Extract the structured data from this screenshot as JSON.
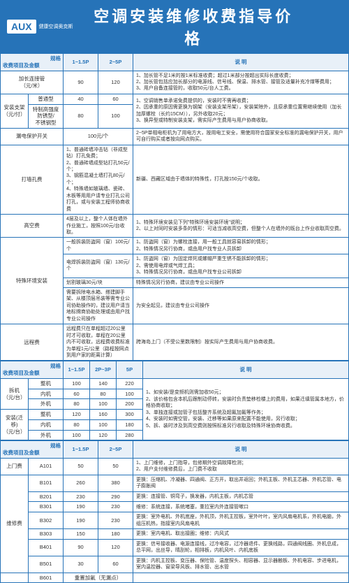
{
  "header": {
    "logo": "AUX",
    "logo_sub": "健康空调奥克斯",
    "title": "空调安装维修收费指导价格"
  },
  "colors": {
    "primary": "#2673b8",
    "bg_section": "#e8f0f8",
    "text": "#333333"
  },
  "section1": {
    "head_label": "收费项目及金额",
    "head_spec": "规格",
    "c1": "1~1.5P",
    "c2": "2~5P",
    "desc_label": "说  明",
    "r1": {
      "label": "加长连接管\n（元/米）",
      "v1": "90",
      "v2": "120",
      "desc": "1、加长管不足1米的按1米标准收费；超过1米部分按超出实际长度收费；\n2、加长管包括应加长部分的电源线、信号线、保温、排水管、接管及适量补充冷煤等费用；\n3、用户自备连接管的，收取50元/台人工费。"
    },
    "r2": {
      "cat": "安装支架\n（元/付）",
      "sub1": "普通型",
      "v1a": "40",
      "v2a": "60",
      "sub2": "特制高强度\n防锈型/\n不锈钢型",
      "v1b": "80",
      "v2b": "100",
      "desc": "1、空调销售单承诺免费提供的，安装时不需再收费；\n2、因承重的原因需更换为钢架（安装支架吊架），安装架除外，且原承重位置需继续使用（加长加厚螺栓（长约15CM）），另外收取20元；\n3、换异型或特制安装支架，需实际产生费用与用户协商收取。"
    },
    "r3": {
      "label": "漏电保护开关",
      "v": "100元/个",
      "desc": "2~5P单相电柜机为了用电方大，按用电工安全，需使用符合国家安全标准的漏电保护开关，用户可自行购买或者按向网点购买。"
    },
    "r4": {
      "label": "打墙孔费",
      "v": "1、普通砖墙冲击钻（非成型钻）打孔免费；\n2、普通砖墙成型钻打孔50元/个；\n3、钢筋混凝土墙打孔80元/个；\n4、特殊墙如玻璃墙、瓷砖、木板等用用户请专业打孔公司打孔，或与安装工程师协商收费",
      "desc": "新疆、西藏区域由于墙体的特殊性，打孔按150元/个收取。"
    },
    "r5": {
      "label": "高空费",
      "v": "4层及以上，整个人体在墙外作业施工，按照100元/台收取。",
      "desc": "1、特殊环境安装见下列\"特殊环境安装环境\"说明；\n2、以上对同时安装多条的情形：可适当减收高空费，但整个人在墙外的既台上作业收取高空费。"
    },
    "r6": {
      "cat": "特殊环境安装",
      "r6a": {
        "label": "一般拆装防盗网（窗）100元/个",
        "desc": "1、防盗网（窗）为螺栓连接，用一般工具就容易拆卸的情形；\n2、特殊情况另行协商，或由用户找专业人员拆卸"
      },
      "r6b": {
        "label": "电焊拆装防盗网（窗）130元/个",
        "desc": "1、防盗网（窗）为固定焊死或螺帽严重生锈不能拆卸的情形；\n2、需使用电焊或气焊工具；\n3、特殊情况另行协商，或由用户找专业公司拆卸"
      },
      "r6c": {
        "label": "划割玻璃30元/块",
        "desc": "特殊情况另行协商，建议由专业公司操作"
      },
      "r6d": {
        "label": "需要拆除电水箱、搭建脚手架、从楼顶层吊装等需专业公司协助操作的，建议用户请当地标牌商协助处理或由用户找专业公司操作",
        "desc": "为安全起见，建议由专业公司操作"
      }
    },
    "r7": {
      "label": "远程费",
      "v": "远程费只在单程超过20公里时才可收取，单程在20公里内不可收取，远程费收费标准为单程1元/公里（路程按网点到用户家的距离计算）",
      "desc": "跨海岛上门（不受公里数限制）按实际产生费用与用户协商收费。"
    }
  },
  "section2": {
    "c1": "1~1.5P",
    "c2": "2P~3P",
    "c3": "5P",
    "r1": {
      "cat": "拆机\n（元/台）",
      "sub": "整机",
      "v1": "100",
      "v2": "140",
      "v3": "220"
    },
    "r2": {
      "sub": "内机",
      "v1": "60",
      "v2": "80",
      "v3": "100"
    },
    "r3": {
      "sub": "外机",
      "v1": "80",
      "v2": "100",
      "v3": "200"
    },
    "r4": {
      "cat": "安装(迁移)\n（元/台）",
      "sub": "整机",
      "v1": "120",
      "v2": "160",
      "v3": "300"
    },
    "r5": {
      "sub": "内机",
      "v1": "80",
      "v2": "100",
      "v3": "180"
    },
    "r6": {
      "sub": "外机",
      "v1": "100",
      "v2": "120",
      "v3": "280"
    },
    "desc": "1、如安装/是变频机则需加收50元；\n2、该价格包含本机后跟制动停转，安装时负责垫移检楼上的费用，如果迁填管属本地方，价格协商收取；\n3、单独连接或加管子包括整齐系统及超氟加氟等作务；\n4、安装时如需空管，安装、迁移等如果原来配置不能使用，另行收取；\n5、拆、装时涉及到高空费则按照标准另行收取及特殊环境协商收费。"
  },
  "section3": {
    "c1": "1~1.5P",
    "c2": "2~5P",
    "r1": {
      "label": "上门费",
      "sub": "A101",
      "v1": "50",
      "v2": "50",
      "desc": "1、上门维修，上门指导，包修期外空调故障检测；\n2、用户支付维修费后，上门费不收取"
    },
    "r2": {
      "cat": "维修费",
      "items": [
        {
          "code": "B101",
          "v1": "260",
          "v2": "380",
          "desc": "更换：压缩机、冷凝器、四通阀、正方开，取出并返回；外机主板、外机主芯器、外机芯管、电子膨胀阀"
        },
        {
          "code": "B201",
          "v1": "230",
          "v2": "290",
          "desc": "更换：连接管、铜弯子，换发器，内机主板，内机芯管"
        },
        {
          "code": "B301",
          "v1": "190",
          "v2": "230",
          "desc": "维修：系统连接，系统堵塞，重拉室内外连接管嗽口"
        },
        {
          "code": "B302",
          "v1": "190",
          "v2": "230",
          "desc": "更换：室外电机、外机底座，外机顶，外机主控板，室外叶叶，室内风扇电机系，外机电脑，外组压机热，指接室内风扇电机"
        },
        {
          "code": "B303",
          "v1": "150",
          "v2": "180",
          "desc": "更换：室内电机、取出接圈；维修：内风式"
        },
        {
          "code": "B401",
          "v1": "90",
          "v2": "120",
          "desc": "更换：信号接收器、电源连接线，过冷电容，过冷器退件、更换线路，四通阀线圈、外机总成，总平网，出丝导，晴刮轮，相排板，内机风叶、内机底板"
        },
        {
          "code": "B501",
          "v1": "30",
          "v2": "60",
          "desc": "更换：内机主控板、变压器、保险管、温度探头、相容器、显示器触板、外机电容、步进电机，室内温控器、窗梁导风板、排水管、出水管"
        }
      ]
    },
    "rlast": {
      "label": "B601",
      "v": "重置加氟（无漏点）"
    }
  }
}
